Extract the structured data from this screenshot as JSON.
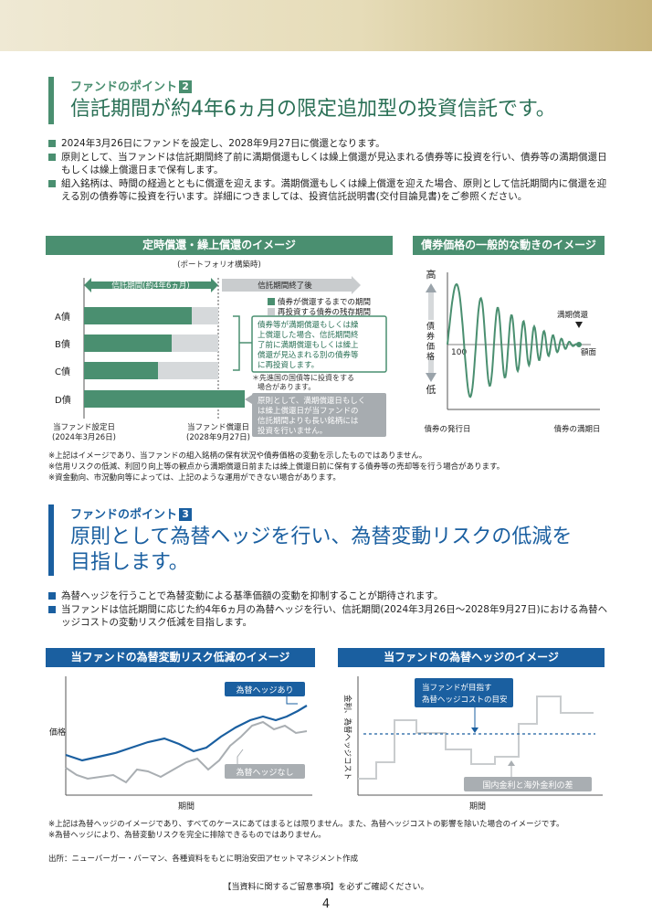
{
  "point2": {
    "label": "ファンドのポイント",
    "num": "2",
    "heading": "信託期間が約4年6ヵ月の限定追加型の投資信託です。",
    "bullets": [
      "2024年3月26日にファンドを設定し、2028年9月27日に償還となります。",
      "原則として、当ファンドは信託期間終了前に満期償還もしくは繰上償還が見込まれる債券等に投資を行い、債券等の満期償還日もしくは繰上償還日まで保有します。",
      "組入銘柄は、時間の経過とともに償還を迎えます。満期償還もしくは繰上償還を迎えた場合、原則として信託期間内に償還を迎える別の債券等に投資を行います。詳細につきましては、投資信託説明書(交付目論見書)をご参照ください。"
    ]
  },
  "chart_left": {
    "banner": "定時償還・繰上償還のイメージ",
    "portfolio_note": "(ポートフォリオ構築時)",
    "trust_period": "信託期間(約4年6ヵ月)",
    "after_term": "信託期間終了後",
    "legend_until": "債券が償還するまでの期間",
    "legend_remaining": "再投資する債券の残存期間",
    "bonds": [
      "A債",
      "B債",
      "C債",
      "D債"
    ],
    "callout1": [
      "債券等が満期償還もしくは繰",
      "上償還した場合、信託期間終",
      "了前に満期償還もしくは繰上",
      "償還が見込まれる別の債券等",
      "に再投資します。"
    ],
    "footnote1": [
      "＊先進国の国債等に投資をする",
      "場合があります。"
    ],
    "callout2": [
      "原則として、満期償還日もしく",
      "は繰上償還日が当ファンドの",
      "信託期間よりも長い銘柄には",
      "投資を行いません。"
    ],
    "setup_label": "当ファンド設定日",
    "setup_date": "(2024年3月26日)",
    "redeem_label": "当ファンド償還日",
    "redeem_date": "(2028年9月27日)"
  },
  "chart_right": {
    "banner": "債券価格の一般的な動きのイメージ",
    "high": "高",
    "low": "低",
    "ylabel": "債券価格",
    "par_value": "100",
    "maturity_redeem": "満期償還",
    "face_value": "額面",
    "issue_date": "債券の発行日",
    "maturity_date": "債券の満期日"
  },
  "notes1": [
    "※上記はイメージであり、当ファンドの組入銘柄の保有状況や債券価格の変動を示したものではありません。",
    "※信用リスクの低減、利回り向上等の観点から満期償還日前または繰上償還日前に保有する債券等の売却等を行う場合があります。",
    "※資金動向、市況動向等によっては、上記のような運用ができない場合があります。"
  ],
  "point3": {
    "label": "ファンドのポイント",
    "num": "3",
    "heading_lines": [
      "原則として為替ヘッジを行い、為替変動リスクの低減を",
      "目指します。"
    ],
    "bullets": [
      "為替ヘッジを行うことで為替変動による基準価額の変動を抑制することが期待されます。",
      "当ファンドは信託期間に応じた約4年6ヵ月の為替ヘッジを行い、信託期間(2024年3月26日〜2028年9月27日)における為替ヘッジコストの変動リスク低減を目指します。"
    ]
  },
  "chart_hedge": {
    "banner": "当ファンドの為替変動リスク低減のイメージ",
    "ylabel": "価格",
    "xlabel": "期間",
    "hedged": "為替ヘッジあり",
    "unhedged": "為替ヘッジなし"
  },
  "chart_cost": {
    "banner": "当ファンドの為替ヘッジのイメージ",
    "ylabel": "金利、為替ヘッジコスト",
    "xlabel": "期間",
    "target": [
      "当ファンドが目指す",
      "為替ヘッジコストの目安"
    ],
    "diff": "国内金利と海外金利の差"
  },
  "notes2": [
    "※上記は為替ヘッジのイメージであり、すべてのケースにあてはまるとは限りません。また、為替ヘッジコストの影響を除いた場合のイメージです。",
    "※為替ヘッジにより、為替変動リスクを完全に排除できるものではありません。"
  ],
  "source": "出所：ニューバーガー・バーマン、各種資料をもとに明治安田アセットマネジメント作成",
  "footer": "【当資料に関するご留意事項】を必ずご確認ください。",
  "page_number": "4",
  "colors": {
    "green": "#4a8f70",
    "blue": "#1a5fa0",
    "gray": "#9aa3aa"
  }
}
